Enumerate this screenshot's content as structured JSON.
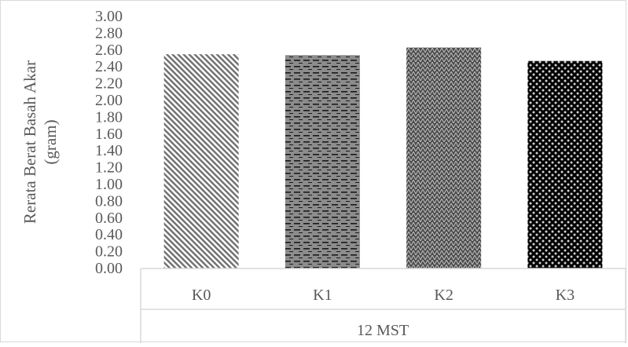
{
  "chart_data": {
    "type": "bar",
    "categories": [
      "K0",
      "K1",
      "K2",
      "K3"
    ],
    "values": [
      2.55,
      2.54,
      2.63,
      2.47
    ],
    "group_label": "12 MST",
    "ylabel_line1": "Rerata Berat Basah Akar",
    "ylabel_line2": "(gram)",
    "ylim": [
      0,
      3.0
    ],
    "yticks": [
      "0.00",
      "0.20",
      "0.40",
      "0.60",
      "0.80",
      "1.00",
      "1.20",
      "1.40",
      "1.60",
      "1.80",
      "2.00",
      "2.20",
      "2.40",
      "2.60",
      "2.80",
      "3.00"
    ],
    "grid": false,
    "legend": "none",
    "bar_patterns": [
      "diagonal-stripes",
      "horizontal-dashes",
      "zigzag-weave",
      "dots-grid"
    ]
  },
  "colors": {
    "axis": "#d9d9d9",
    "text": "#595959",
    "bar_k0": "#7f7f7f",
    "bar_k1": "#808080",
    "bar_k2": "#595959",
    "bar_k3": "#000000"
  }
}
